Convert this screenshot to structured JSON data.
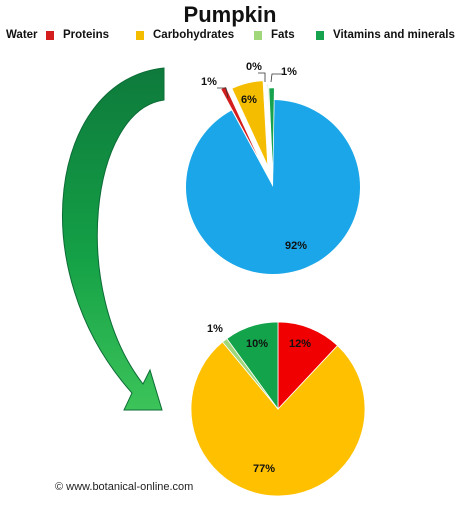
{
  "title": "Pumpkin",
  "legend": [
    {
      "label": "Water",
      "color": "#1aa6e8"
    },
    {
      "label": "Proteins",
      "color": "#d41d1d"
    },
    {
      "label": "Carbohydrates",
      "color": "#f5bd00"
    },
    {
      "label": "Fats",
      "color": "#9fd77a"
    },
    {
      "label": "Vitamins and minerals",
      "color": "#17a34d"
    }
  ],
  "watermark": "© www.botanical-online.com",
  "chart_data": [
    {
      "type": "pie",
      "title": "",
      "labels": [
        "Water",
        "Proteins",
        "Carbohydrates",
        "Fats",
        "Vitamins and minerals"
      ],
      "values": [
        92,
        1,
        6,
        0,
        1
      ],
      "data_labels": [
        "92%",
        "1%",
        "6%",
        "0%",
        "1%"
      ],
      "colors": [
        "#1aa6e8",
        "#d41d1d",
        "#f5bd00",
        "#9fd77a",
        "#17a34d"
      ]
    },
    {
      "type": "pie",
      "title": "",
      "labels": [
        "Proteins",
        "Carbohydrates",
        "Fats",
        "Vitamins and minerals"
      ],
      "values": [
        12,
        77,
        1,
        10
      ],
      "data_labels": [
        "12%",
        "77%",
        "1%",
        "10%"
      ],
      "colors": [
        "#f00000",
        "#ffc000",
        "#9fd77a",
        "#13a34a"
      ]
    }
  ]
}
